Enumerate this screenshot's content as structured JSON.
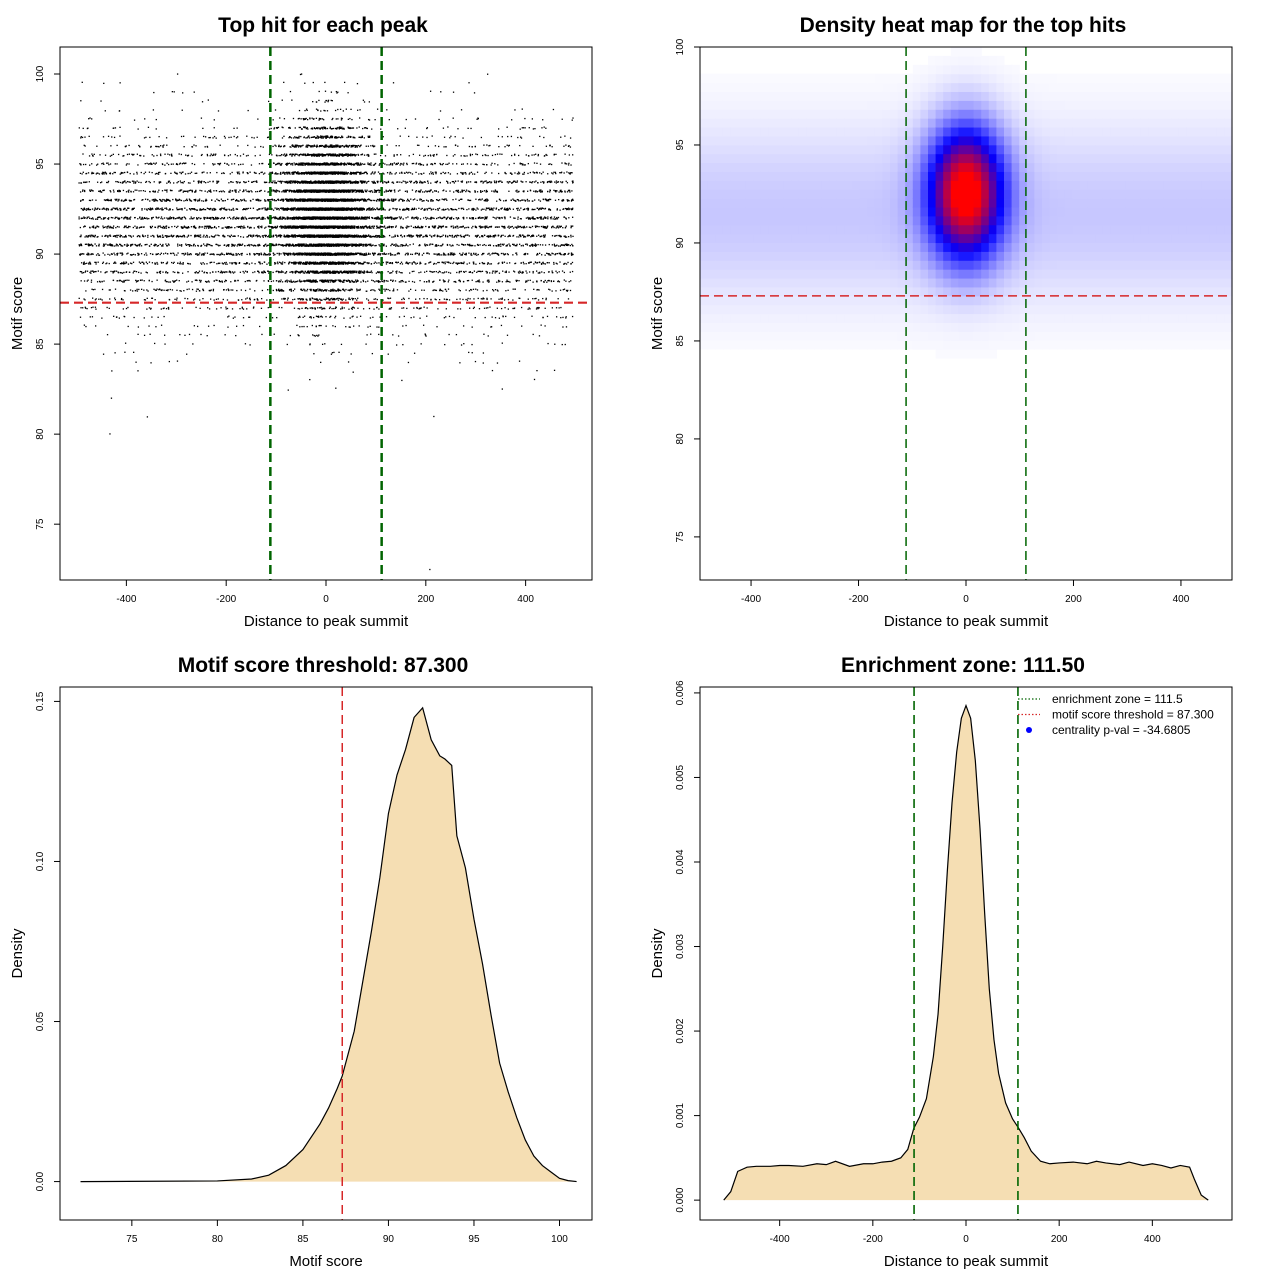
{
  "chart_data": [
    {
      "type": "scatter",
      "title": "Top hit for each peak",
      "xlabel": "Distance to peak summit",
      "ylabel": "Motif score",
      "xlim": [
        -533,
        533
      ],
      "ylim": [
        71.9,
        101.5
      ],
      "xticks": [
        -400,
        -200,
        0,
        200,
        400
      ],
      "xtick_labels": [
        "-400",
        "-200",
        "0",
        "200",
        "400"
      ],
      "yticks": [
        75,
        80,
        85,
        90,
        95,
        100
      ],
      "ytick_labels": [
        "75",
        "80",
        "85",
        "90",
        "95",
        "100"
      ],
      "grid": false,
      "point_color": "#000000",
      "reference_lines": [
        {
          "orientation": "vertical",
          "value": -111.5,
          "color": "#006400",
          "style": "dashed"
        },
        {
          "orientation": "vertical",
          "value": 111.5,
          "color": "#006400",
          "style": "dashed"
        },
        {
          "orientation": "horizontal",
          "value": 87.3,
          "color": "#d62728",
          "style": "dashed"
        }
      ],
      "x_range": [
        -495,
        495
      ],
      "outliers": [
        [
          -433,
          80.1
        ],
        [
          -358,
          81.0
        ],
        [
          -430,
          82.1
        ],
        [
          216,
          80.9
        ],
        [
          208,
          72.7
        ]
      ]
    },
    {
      "type": "heatmap",
      "title": "Density heat map for the top hits",
      "xlabel": "Distance to peak summit",
      "ylabel": "Motif score",
      "xlim": [
        -495,
        495
      ],
      "ylim": [
        72.8,
        100
      ],
      "xticks": [
        -400,
        -200,
        0,
        200,
        400
      ],
      "xtick_labels": [
        "-400",
        "-200",
        "0",
        "200",
        "400"
      ],
      "yticks": [
        75,
        80,
        85,
        90,
        95,
        100
      ],
      "ytick_labels": [
        "75",
        "80",
        "85",
        "90",
        "95",
        "100"
      ],
      "colors": [
        "#ffffff",
        "#0000ff",
        "#ff0000"
      ],
      "reference_lines": [
        {
          "orientation": "vertical",
          "value": -111.5,
          "color": "#006400",
          "style": "dashed"
        },
        {
          "orientation": "vertical",
          "value": 111.5,
          "color": "#006400",
          "style": "dashed"
        },
        {
          "orientation": "horizontal",
          "value": 87.3,
          "color": "#d62728",
          "style": "dashed"
        }
      ]
    },
    {
      "type": "area",
      "title": "Motif score threshold: 87.300",
      "xlabel": "Motif score",
      "ylabel": "Density",
      "xlim": [
        70.8,
        101.9
      ],
      "ylim": [
        -0.012,
        0.1545
      ],
      "xticks": [
        75,
        80,
        85,
        90,
        95,
        100
      ],
      "xtick_labels": [
        "75",
        "80",
        "85",
        "90",
        "95",
        "100"
      ],
      "yticks": [
        0,
        0.05,
        0.1,
        0.15
      ],
      "ytick_labels": [
        "0.00",
        "0.05",
        "0.10",
        "0.15"
      ],
      "fill_color": "#f5deb3",
      "threshold": 87.3,
      "threshold_color": "#d62728",
      "x": [
        72,
        80,
        82,
        83,
        84,
        85,
        86,
        86.5,
        87,
        87.3,
        88,
        89,
        89.5,
        90,
        90.5,
        91,
        91.5,
        92,
        92.5,
        93,
        93.3,
        93.7,
        94,
        94.5,
        95,
        95.5,
        96,
        96.5,
        97,
        97.5,
        98,
        98.5,
        99,
        99.5,
        100,
        100.5,
        101
      ],
      "y": [
        0,
        0.0002,
        0.0008,
        0.002,
        0.005,
        0.01,
        0.018,
        0.023,
        0.029,
        0.033,
        0.047,
        0.078,
        0.095,
        0.115,
        0.127,
        0.135,
        0.145,
        0.148,
        0.138,
        0.133,
        0.132,
        0.13,
        0.108,
        0.098,
        0.082,
        0.068,
        0.052,
        0.037,
        0.028,
        0.02,
        0.013,
        0.008,
        0.005,
        0.003,
        0.001,
        0.0003,
        0
      ]
    },
    {
      "type": "area",
      "title": "Enrichment zone: 111.50",
      "xlabel": "Distance to peak summit",
      "ylabel": "Density",
      "xlim": [
        -571,
        571
      ],
      "ylim": [
        -0.000235,
        0.00607
      ],
      "xticks": [
        -400,
        -200,
        0,
        200,
        400
      ],
      "xtick_labels": [
        "-400",
        "-200",
        "0",
        "200",
        "400"
      ],
      "yticks": [
        0,
        0.001,
        0.002,
        0.003,
        0.004,
        0.005,
        0.006
      ],
      "ytick_labels": [
        "0.000",
        "0.001",
        "0.002",
        "0.003",
        "0.004",
        "0.005",
        "0.006"
      ],
      "fill_color": "#f5deb3",
      "enrichment_zone": 111.5,
      "x": [
        -520,
        -505,
        -490,
        -470,
        -450,
        -420,
        -400,
        -380,
        -350,
        -320,
        -300,
        -280,
        -250,
        -220,
        -200,
        -180,
        -160,
        -140,
        -125,
        -112,
        -100,
        -85,
        -70,
        -60,
        -50,
        -40,
        -30,
        -20,
        -10,
        0,
        10,
        20,
        30,
        40,
        50,
        60,
        70,
        85,
        100,
        112,
        125,
        140,
        160,
        180,
        200,
        230,
        260,
        280,
        300,
        330,
        350,
        380,
        400,
        420,
        440,
        460,
        480,
        490,
        505,
        520
      ],
      "y": [
        0,
        0.0001,
        0.00034,
        0.00039,
        0.0004,
        0.0004,
        0.00041,
        0.00041,
        0.0004,
        0.00043,
        0.00042,
        0.00046,
        0.0004,
        0.00043,
        0.00043,
        0.00045,
        0.00046,
        0.0005,
        0.0006,
        0.00085,
        0.00098,
        0.0012,
        0.0017,
        0.0022,
        0.003,
        0.0039,
        0.0047,
        0.0053,
        0.0057,
        0.00585,
        0.0057,
        0.0052,
        0.0044,
        0.0034,
        0.0025,
        0.0019,
        0.0015,
        0.00115,
        0.00096,
        0.00086,
        0.00074,
        0.00058,
        0.00046,
        0.00043,
        0.00044,
        0.00045,
        0.00043,
        0.00046,
        0.00044,
        0.00042,
        0.00045,
        0.00041,
        0.00043,
        0.00041,
        0.00038,
        0.00041,
        0.00039,
        0.00025,
        6e-05,
        0
      ],
      "reference_lines": [
        {
          "orientation": "vertical",
          "value": -111.5,
          "color": "#006400",
          "style": "dashed"
        },
        {
          "orientation": "vertical",
          "value": 111.5,
          "color": "#006400",
          "style": "dashed"
        }
      ],
      "legend": {
        "placement": "top-right",
        "entries": [
          {
            "label": "enrichment zone = 111.5",
            "color": "#006400",
            "style": "dotted"
          },
          {
            "label": "motif score threshold = 87.300",
            "color": "#d62728",
            "style": "dotted"
          },
          {
            "label": "centrality p-val = -34.6805",
            "color": "#0000ff",
            "style": "point"
          }
        ]
      }
    }
  ]
}
